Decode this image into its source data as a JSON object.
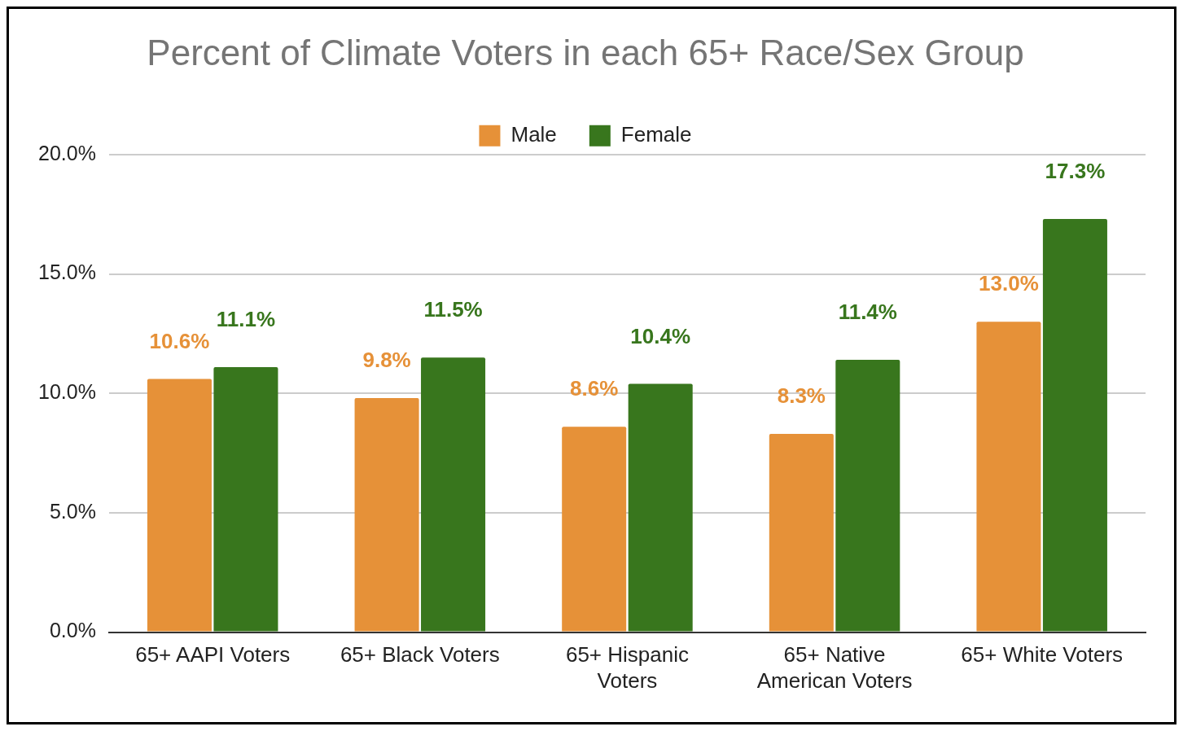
{
  "chart_data": {
    "type": "bar",
    "title": "Percent of Climate Voters in each 65+ Race/Sex Group",
    "categories": [
      "65+ AAPI Voters",
      "65+ Black Voters",
      "65+ Hispanic Voters",
      "65+ Native American Voters",
      "65+ White Voters"
    ],
    "series": [
      {
        "name": "Male",
        "color": "#e69138",
        "values": [
          10.6,
          9.8,
          8.6,
          8.3,
          13.0
        ],
        "value_labels": [
          "10.6%",
          "9.8%",
          "8.6%",
          "8.3%",
          "13.0%"
        ]
      },
      {
        "name": "Female",
        "color": "#38761d",
        "values": [
          11.1,
          11.5,
          10.4,
          11.4,
          17.3
        ],
        "value_labels": [
          "11.1%",
          "11.5%",
          "10.4%",
          "11.4%",
          "17.3%"
        ]
      }
    ],
    "ylim": [
      0,
      20
    ],
    "yticks": [
      {
        "value": 0,
        "label": "0.0%"
      },
      {
        "value": 5,
        "label": "5.0%"
      },
      {
        "value": 10,
        "label": "10.0%"
      },
      {
        "value": 15,
        "label": "15.0%"
      },
      {
        "value": 20,
        "label": "20.0%"
      }
    ],
    "grid": "y",
    "legend": "top"
  }
}
